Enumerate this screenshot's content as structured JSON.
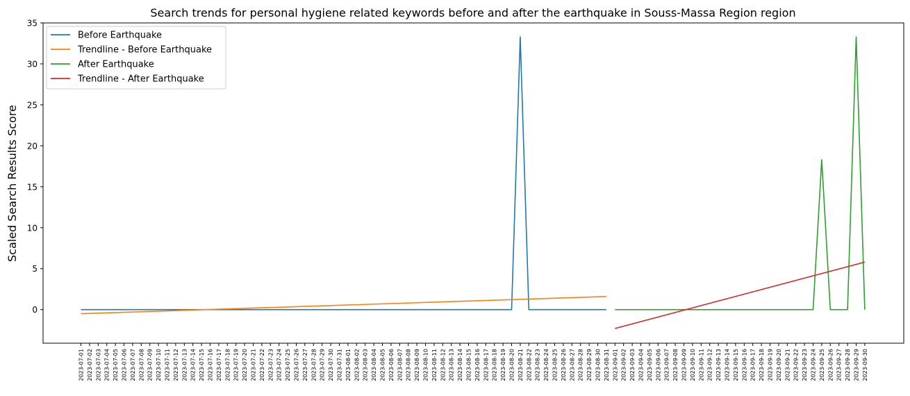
{
  "chart_data": {
    "type": "line",
    "title": "Search trends for personal hygiene related keywords before and after the earthquake in Souss-Massa Region region",
    "xlabel": "",
    "ylabel": "Scaled Search Results Score",
    "ylim": [
      -4.1,
      35.0
    ],
    "yticks": [
      0,
      5,
      10,
      15,
      20,
      25,
      30,
      35
    ],
    "grid": false,
    "legend_position": "upper-left",
    "x": [
      "2023-07-01",
      "2023-07-02",
      "2023-07-03",
      "2023-07-04",
      "2023-07-05",
      "2023-07-06",
      "2023-07-07",
      "2023-07-08",
      "2023-07-09",
      "2023-07-10",
      "2023-07-11",
      "2023-07-12",
      "2023-07-13",
      "2023-07-14",
      "2023-07-15",
      "2023-07-16",
      "2023-07-17",
      "2023-07-18",
      "2023-07-19",
      "2023-07-20",
      "2023-07-21",
      "2023-07-22",
      "2023-07-23",
      "2023-07-24",
      "2023-07-25",
      "2023-07-26",
      "2023-07-27",
      "2023-07-28",
      "2023-07-29",
      "2023-07-30",
      "2023-07-31",
      "2023-08-01",
      "2023-08-02",
      "2023-08-03",
      "2023-08-04",
      "2023-08-05",
      "2023-08-06",
      "2023-08-07",
      "2023-08-08",
      "2023-08-09",
      "2023-08-10",
      "2023-08-11",
      "2023-08-12",
      "2023-08-13",
      "2023-08-14",
      "2023-08-15",
      "2023-08-16",
      "2023-08-17",
      "2023-08-18",
      "2023-08-19",
      "2023-08-20",
      "2023-08-21",
      "2023-08-22",
      "2023-08-23",
      "2023-08-24",
      "2023-08-25",
      "2023-08-26",
      "2023-08-27",
      "2023-08-28",
      "2023-08-29",
      "2023-08-30",
      "2023-08-31",
      "2023-09-01",
      "2023-09-02",
      "2023-09-03",
      "2023-09-04",
      "2023-09-05",
      "2023-09-06",
      "2023-09-07",
      "2023-09-08",
      "2023-09-09",
      "2023-09-10",
      "2023-09-11",
      "2023-09-12",
      "2023-09-13",
      "2023-09-14",
      "2023-09-15",
      "2023-09-16",
      "2023-09-17",
      "2023-09-18",
      "2023-09-19",
      "2023-09-20",
      "2023-09-21",
      "2023-09-22",
      "2023-09-23",
      "2023-09-24",
      "2023-09-25",
      "2023-09-26",
      "2023-09-27",
      "2023-09-28",
      "2023-09-29",
      "2023-09-30"
    ],
    "series": [
      {
        "name": "Before Earthquake",
        "color": "#1f77b4",
        "points": [
          [
            "2023-07-01",
            0
          ],
          [
            "2023-08-20",
            0
          ],
          [
            "2023-08-21",
            33.3
          ],
          [
            "2023-08-22",
            0
          ],
          [
            "2023-08-31",
            0
          ]
        ]
      },
      {
        "name": "Trendline - Before Earthquake",
        "color": "#ff7f0e",
        "points": [
          [
            "2023-07-01",
            -0.5
          ],
          [
            "2023-08-31",
            1.6
          ]
        ]
      },
      {
        "name": "After Earthquake",
        "color": "#2ca02c",
        "points": [
          [
            "2023-09-01",
            0
          ],
          [
            "2023-09-24",
            0
          ],
          [
            "2023-09-25",
            18.3
          ],
          [
            "2023-09-26",
            0
          ],
          [
            "2023-09-28",
            0
          ],
          [
            "2023-09-29",
            33.3
          ],
          [
            "2023-09-30",
            0
          ]
        ]
      },
      {
        "name": "Trendline - After Earthquake",
        "color": "#d62728",
        "points": [
          [
            "2023-09-01",
            -2.3
          ],
          [
            "2023-09-30",
            5.8
          ]
        ]
      }
    ]
  }
}
